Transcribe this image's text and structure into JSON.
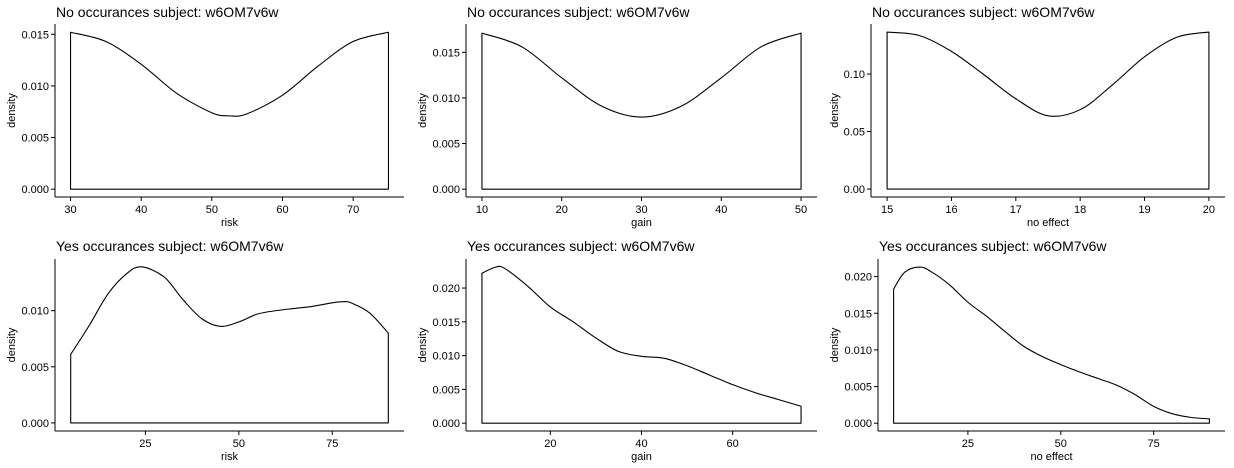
{
  "chart_data": [
    {
      "type": "area",
      "title": "No occurances subject:  w6OM7v6w",
      "xlabel": "risk",
      "ylabel": "density",
      "xlim": [
        27.8,
        77.2
      ],
      "ylim": [
        -0.00076,
        0.016
      ],
      "xticks": [
        30,
        40,
        50,
        60,
        70
      ],
      "yticks": [
        0.0,
        0.005,
        0.01,
        0.015
      ],
      "ytick_labels": [
        "0.000",
        "0.005",
        "0.010",
        "0.015"
      ],
      "xtick_labels": [
        "30",
        "40",
        "50",
        "60",
        "70"
      ],
      "x": [
        30,
        35,
        40,
        45,
        50,
        52.5,
        55,
        60,
        65,
        70,
        75
      ],
      "y": [
        0.0152,
        0.0143,
        0.0121,
        0.0093,
        0.0074,
        0.0071,
        0.0073,
        0.0091,
        0.0119,
        0.0143,
        0.0152
      ]
    },
    {
      "type": "area",
      "title": "No occurances subject:  w6OM7v6w",
      "xlabel": "gain",
      "ylabel": "density",
      "xlim": [
        8.0,
        52.0
      ],
      "ylim": [
        -0.00086,
        0.0181
      ],
      "xticks": [
        10,
        20,
        30,
        40,
        50
      ],
      "yticks": [
        0.0,
        0.005,
        0.01,
        0.015
      ],
      "ytick_labels": [
        "0.000",
        "0.005",
        "0.010",
        "0.015"
      ],
      "xtick_labels": [
        "10",
        "20",
        "30",
        "40",
        "50"
      ],
      "x": [
        10,
        15,
        20,
        25,
        30,
        35,
        40,
        45,
        50
      ],
      "y": [
        0.0171,
        0.0156,
        0.0122,
        0.0091,
        0.0079,
        0.0091,
        0.0122,
        0.0156,
        0.0171
      ]
    },
    {
      "type": "area",
      "title": "No occurances subject:  w6OM7v6w",
      "xlabel": "no effect",
      "ylabel": "density",
      "xlim": [
        14.75,
        20.25
      ],
      "ylim": [
        -0.0069,
        0.1435
      ],
      "xticks": [
        15,
        16,
        17,
        18,
        19,
        20
      ],
      "yticks": [
        0.0,
        0.05,
        0.1
      ],
      "ytick_labels": [
        "0.00",
        "0.05",
        "0.10"
      ],
      "xtick_labels": [
        "15",
        "16",
        "17",
        "18",
        "19",
        "20"
      ],
      "x": [
        15,
        15.5,
        16,
        16.5,
        17,
        17.5,
        18,
        18.5,
        19,
        19.5,
        20
      ],
      "y": [
        0.1365,
        0.1335,
        0.1197,
        0.0996,
        0.0785,
        0.0637,
        0.069,
        0.0905,
        0.115,
        0.132,
        0.1365
      ]
    },
    {
      "type": "area",
      "title": "Yes occurances subject:  w6OM7v6w",
      "xlabel": "risk",
      "ylabel": "density",
      "xlim": [
        0.8,
        94.2
      ],
      "ylim": [
        -0.00072,
        0.0146
      ],
      "xticks": [
        25,
        50,
        75
      ],
      "yticks": [
        0.0,
        0.005,
        0.01
      ],
      "ytick_labels": [
        "0.000",
        "0.005",
        "0.010"
      ],
      "xtick_labels": [
        "25",
        "50",
        "75"
      ],
      "x": [
        5,
        10,
        15,
        20,
        24,
        30,
        35,
        40,
        45,
        50,
        55,
        60,
        65,
        70,
        75,
        78,
        80,
        85,
        90
      ],
      "y": [
        0.0061,
        0.0087,
        0.0115,
        0.0133,
        0.0139,
        0.013,
        0.011,
        0.0093,
        0.0086,
        0.009,
        0.0097,
        0.01,
        0.0102,
        0.0104,
        0.0107,
        0.0108,
        0.0107,
        0.0098,
        0.008
      ]
    },
    {
      "type": "area",
      "title": "Yes occurances subject:  w6OM7v6w",
      "xlabel": "gain",
      "ylabel": "density",
      "xlim": [
        1.5,
        78.5
      ],
      "ylim": [
        -0.00116,
        0.0243
      ],
      "xticks": [
        20,
        40,
        60
      ],
      "yticks": [
        0.0,
        0.005,
        0.01,
        0.015,
        0.02
      ],
      "ytick_labels": [
        "0.000",
        "0.005",
        "0.010",
        "0.015",
        "0.020"
      ],
      "xtick_labels": [
        "20",
        "40",
        "60"
      ],
      "x": [
        5,
        8,
        10,
        15,
        20,
        25,
        30,
        35,
        40,
        45,
        50,
        55,
        60,
        65,
        70,
        75
      ],
      "y": [
        0.0222,
        0.0231,
        0.0229,
        0.0203,
        0.0172,
        0.015,
        0.0126,
        0.0106,
        0.0099,
        0.0096,
        0.0085,
        0.0071,
        0.0057,
        0.0045,
        0.0035,
        0.0025
      ]
    },
    {
      "type": "area",
      "title": "Yes occurances subject:  w6OM7v6w",
      "xlabel": "no effect",
      "ylabel": "density",
      "xlim": [
        0.8,
        94.2
      ],
      "ylim": [
        -0.00106,
        0.0224
      ],
      "xticks": [
        25,
        50,
        75
      ],
      "yticks": [
        0.0,
        0.005,
        0.01,
        0.015,
        0.02
      ],
      "ytick_labels": [
        "0.000",
        "0.005",
        "0.010",
        "0.015",
        "0.020"
      ],
      "xtick_labels": [
        "25",
        "50",
        "75"
      ],
      "x": [
        5,
        8,
        12,
        15,
        20,
        25,
        30,
        35,
        40,
        45,
        50,
        55,
        60,
        65,
        70,
        75,
        80,
        85,
        90
      ],
      "y": [
        0.0183,
        0.0206,
        0.0213,
        0.0207,
        0.0189,
        0.0165,
        0.0146,
        0.0125,
        0.0105,
        0.0091,
        0.008,
        0.007,
        0.0061,
        0.0052,
        0.0039,
        0.0023,
        0.0013,
        0.0008,
        0.0006
      ]
    }
  ]
}
